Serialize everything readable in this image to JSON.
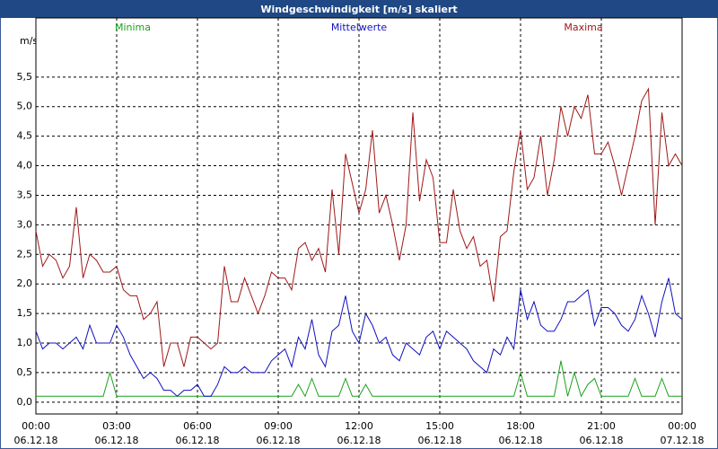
{
  "chart_data": {
    "type": "line",
    "title": "Windgeschwindigkeit [m/s] skaliert",
    "ylabel": "m/s",
    "x": [
      0,
      0.25,
      0.5,
      0.75,
      1,
      1.25,
      1.5,
      1.75,
      2,
      2.25,
      2.5,
      2.75,
      3,
      3.25,
      3.5,
      3.75,
      4,
      4.25,
      4.5,
      4.75,
      5,
      5.25,
      5.5,
      5.75,
      6,
      6.25,
      6.5,
      6.75,
      7,
      7.25,
      7.5,
      7.75,
      8,
      8.25,
      8.5,
      8.75,
      9,
      9.25,
      9.5,
      9.75,
      10,
      10.25,
      10.5,
      10.75,
      11,
      11.25,
      11.5,
      11.75,
      12,
      12.25,
      12.5,
      12.75,
      13,
      13.25,
      13.5,
      13.75,
      14,
      14.25,
      14.5,
      14.75,
      15,
      15.25,
      15.5,
      15.75,
      16,
      16.25,
      16.5,
      16.75,
      17,
      17.25,
      17.5,
      17.75,
      18,
      18.25,
      18.5,
      18.75,
      19,
      19.25,
      19.5,
      19.75,
      20,
      20.25,
      20.5,
      20.75,
      21,
      21.25,
      21.5,
      21.75,
      22,
      22.25,
      22.5,
      22.75,
      23,
      23.25,
      23.5,
      23.75,
      24
    ],
    "series": [
      {
        "name": "Minima",
        "color": "#1aa01a",
        "values": [
          0.1,
          0.1,
          0.1,
          0.1,
          0.1,
          0.1,
          0.1,
          0.1,
          0.1,
          0.1,
          0.1,
          0.5,
          0.1,
          0.1,
          0.1,
          0.1,
          0.1,
          0.1,
          0.1,
          0.1,
          0.1,
          0.1,
          0.1,
          0.1,
          0.1,
          0.1,
          0.1,
          0.1,
          0.1,
          0.1,
          0.1,
          0.1,
          0.1,
          0.1,
          0.1,
          0.1,
          0.1,
          0.1,
          0.1,
          0.3,
          0.1,
          0.4,
          0.1,
          0.1,
          0.1,
          0.1,
          0.4,
          0.1,
          0.1,
          0.3,
          0.1,
          0.1,
          0.1,
          0.1,
          0.1,
          0.1,
          0.1,
          0.1,
          0.1,
          0.1,
          0.1,
          0.1,
          0.1,
          0.1,
          0.1,
          0.1,
          0.1,
          0.1,
          0.1,
          0.1,
          0.1,
          0.1,
          0.5,
          0.1,
          0.1,
          0.1,
          0.1,
          0.1,
          0.7,
          0.1,
          0.5,
          0.1,
          0.3,
          0.4,
          0.1,
          0.1,
          0.1,
          0.1,
          0.1,
          0.4,
          0.1,
          0.1,
          0.1,
          0.4,
          0.1,
          0.1,
          0.1
        ]
      },
      {
        "name": "Mittelwerte",
        "color": "#1010c0",
        "values": [
          1.2,
          0.9,
          1.0,
          1.0,
          0.9,
          1.0,
          1.1,
          0.9,
          1.3,
          1.0,
          1.0,
          1.0,
          1.3,
          1.1,
          0.8,
          0.6,
          0.4,
          0.5,
          0.4,
          0.2,
          0.2,
          0.1,
          0.2,
          0.2,
          0.3,
          0.1,
          0.1,
          0.3,
          0.6,
          0.5,
          0.5,
          0.6,
          0.5,
          0.5,
          0.5,
          0.7,
          0.8,
          0.9,
          0.6,
          1.1,
          0.9,
          1.4,
          0.8,
          0.6,
          1.2,
          1.3,
          1.8,
          1.2,
          1.0,
          1.5,
          1.3,
          1.0,
          1.1,
          0.8,
          0.7,
          1.0,
          0.9,
          0.8,
          1.1,
          1.2,
          0.9,
          1.2,
          1.1,
          1.0,
          0.9,
          0.7,
          0.6,
          0.5,
          0.9,
          0.8,
          1.1,
          0.9,
          1.9,
          1.4,
          1.7,
          1.3,
          1.2,
          1.2,
          1.4,
          1.7,
          1.7,
          1.8,
          1.9,
          1.3,
          1.6,
          1.6,
          1.5,
          1.3,
          1.2,
          1.4,
          1.8,
          1.5,
          1.1,
          1.7,
          2.1,
          1.5,
          1.4
        ]
      },
      {
        "name": "Maxima",
        "color": "#a01818",
        "values": [
          2.9,
          2.3,
          2.5,
          2.4,
          2.1,
          2.3,
          3.3,
          2.1,
          2.5,
          2.4,
          2.2,
          2.2,
          2.3,
          1.9,
          1.8,
          1.8,
          1.4,
          1.5,
          1.7,
          0.6,
          1.0,
          1.0,
          0.6,
          1.1,
          1.1,
          1.0,
          0.9,
          1.0,
          2.3,
          1.7,
          1.7,
          2.1,
          1.8,
          1.5,
          1.8,
          2.2,
          2.1,
          2.1,
          1.9,
          2.6,
          2.7,
          2.4,
          2.6,
          2.2,
          3.6,
          2.5,
          4.2,
          3.7,
          3.2,
          3.6,
          4.6,
          3.2,
          3.5,
          3.0,
          2.4,
          3.0,
          4.9,
          3.4,
          4.1,
          3.8,
          2.7,
          2.7,
          3.6,
          2.9,
          2.6,
          2.8,
          2.3,
          2.4,
          1.7,
          2.8,
          2.9,
          3.9,
          4.6,
          3.6,
          3.8,
          4.5,
          3.5,
          4.1,
          5.0,
          4.5,
          5.0,
          4.8,
          5.2,
          4.2,
          4.2,
          4.4,
          4.0,
          3.5,
          4.0,
          4.5,
          5.1,
          5.3,
          3.0,
          4.9,
          4.0,
          4.2,
          4.0
        ]
      }
    ],
    "xlim": [
      0,
      24
    ],
    "xticks": [
      {
        "value": 0,
        "label": "00:00"
      },
      {
        "value": 3,
        "label": "03:00"
      },
      {
        "value": 6,
        "label": "06:00"
      },
      {
        "value": 9,
        "label": "09:00"
      },
      {
        "value": 12,
        "label": "12:00"
      },
      {
        "value": 15,
        "label": "15:00"
      },
      {
        "value": 18,
        "label": "18:00"
      },
      {
        "value": 21,
        "label": "21:00"
      },
      {
        "value": 24,
        "label": "00:00"
      }
    ],
    "xtick_dates": [
      "06.12.18",
      "06.12.18",
      "06.12.18",
      "06.12.18",
      "06.12.18",
      "06.12.18",
      "06.12.18",
      "06.12.18",
      "07.12.18"
    ],
    "ylim": [
      -0.2,
      6.5
    ],
    "yticks": [
      {
        "value": 0,
        "label": "0,0"
      },
      {
        "value": 0.5,
        "label": "0,5"
      },
      {
        "value": 1,
        "label": "1,0"
      },
      {
        "value": 1.5,
        "label": "1,5"
      },
      {
        "value": 2,
        "label": "2,0"
      },
      {
        "value": 2.5,
        "label": "2,5"
      },
      {
        "value": 3,
        "label": "3,0"
      },
      {
        "value": 3.5,
        "label": "3,5"
      },
      {
        "value": 4,
        "label": "4,0"
      },
      {
        "value": 4.5,
        "label": "4,5"
      },
      {
        "value": 5,
        "label": "5,0"
      },
      {
        "value": 5.5,
        "label": "5,5"
      }
    ],
    "grid": true
  }
}
